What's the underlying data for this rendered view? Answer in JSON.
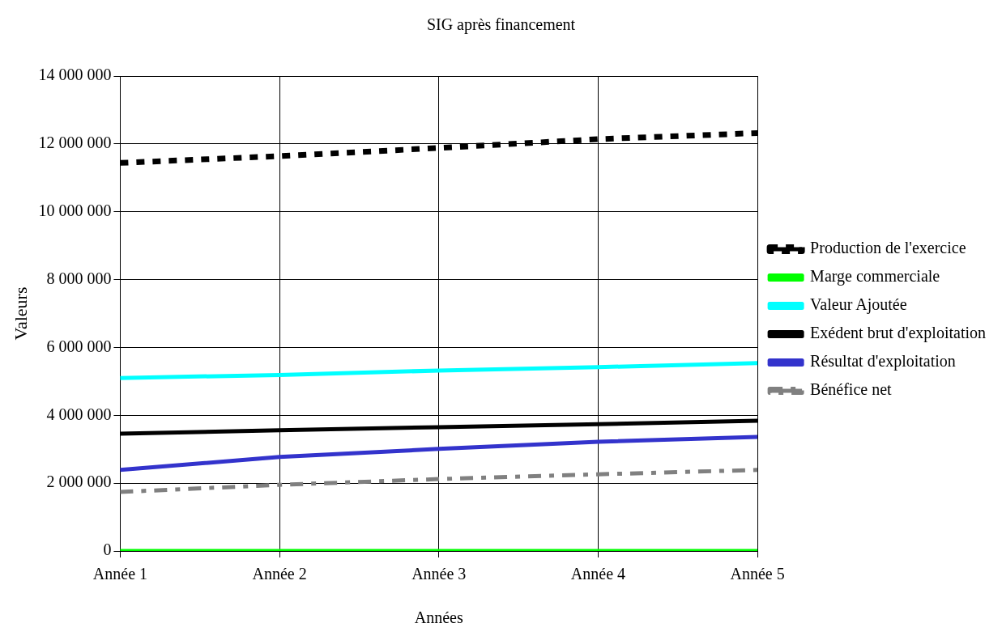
{
  "chart_data": {
    "type": "line",
    "title": "SIG après financement",
    "xlabel": "Années",
    "ylabel": "Valeurs",
    "categories": [
      "Année 1",
      "Année 2",
      "Année 3",
      "Année 4",
      "Année 5"
    ],
    "ylim": [
      0,
      14000000
    ],
    "yticks": [
      {
        "value": 0,
        "label": "0"
      },
      {
        "value": 2000000,
        "label": "2 000 000"
      },
      {
        "value": 4000000,
        "label": "4 000 000"
      },
      {
        "value": 6000000,
        "label": "6 000 000"
      },
      {
        "value": 8000000,
        "label": "8 000 000"
      },
      {
        "value": 10000000,
        "label": "10 000 000"
      },
      {
        "value": 12000000,
        "label": "12 000 000"
      },
      {
        "value": 14000000,
        "label": "14 000 000"
      }
    ],
    "grid": true,
    "legend": "right",
    "marker": "none",
    "series": [
      {
        "name": "Production de l'exercice",
        "color": "#000000",
        "line_style": "dotted",
        "values": [
          11440000,
          11640000,
          11880000,
          12140000,
          12320000
        ]
      },
      {
        "name": "Marge commerciale",
        "color": "#00ff00",
        "values": [
          0,
          0,
          0,
          0,
          0
        ]
      },
      {
        "name": "Valeur Ajoutée",
        "color": "#00ffff",
        "values": [
          5100000,
          5190000,
          5320000,
          5420000,
          5540000
        ]
      },
      {
        "name": "Exédent brut d'exploitation",
        "color": "#000000",
        "values": [
          3460000,
          3560000,
          3650000,
          3740000,
          3840000
        ]
      },
      {
        "name": "Résultat d'exploitation",
        "color": "#3333cc",
        "values": [
          2390000,
          2770000,
          3010000,
          3220000,
          3360000
        ]
      },
      {
        "name": "Bénéfice net",
        "color": "#808080",
        "line_style": "dashed",
        "values": [
          1740000,
          1950000,
          2120000,
          2260000,
          2390000
        ]
      }
    ]
  }
}
